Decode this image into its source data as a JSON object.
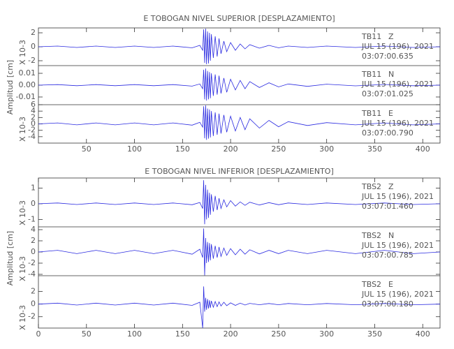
{
  "chart_data": [
    {
      "type": "line",
      "title": "E TOBOGAN NIVEL SUPERIOR [DESPLAZAMIENTO]",
      "y_label": "Amplitud [cm]",
      "xlim": [
        0,
        418
      ],
      "xticks": [
        50,
        100,
        150,
        200,
        250,
        300,
        350,
        400
      ],
      "x": [
        0,
        20,
        40,
        60,
        80,
        100,
        120,
        140,
        160,
        168,
        171,
        172,
        173,
        174,
        175,
        176,
        177,
        178,
        179,
        180,
        182,
        184,
        186,
        188,
        190,
        193,
        196,
        200,
        205,
        210,
        215,
        220,
        230,
        240,
        250,
        260,
        280,
        300,
        330,
        360,
        390,
        418
      ],
      "panels": [
        {
          "station": "TB11",
          "component": "Z",
          "date": "JUL 15 (196), 2021",
          "time": "03:07:00.635",
          "multiplier": "X 10-3",
          "color": "#2a2ae0",
          "ylim": [
            -2.7,
            2.7
          ],
          "yticks": [
            -2,
            0,
            2
          ],
          "values": [
            0,
            0.1,
            -0.1,
            0.1,
            -0.1,
            0.1,
            -0.1,
            0.1,
            -0.15,
            0.2,
            -0.5,
            2.5,
            -2.3,
            2.6,
            -2.5,
            2.2,
            -2.4,
            2,
            -2,
            1.8,
            -1.6,
            1.5,
            -1.4,
            1.2,
            -1,
            0.8,
            -0.7,
            0.6,
            -0.5,
            0.4,
            -0.3,
            0.3,
            -0.2,
            0.2,
            -0.15,
            0.1,
            -0.1,
            0.1,
            -0.1,
            0.1,
            -0.1,
            0
          ]
        },
        {
          "station": "TB11",
          "component": "N",
          "date": "JUL 15 (196), 2021",
          "time": "03:07:01.025",
          "color": "#2a2ae0",
          "ylim": [
            -0.0165,
            0.0165
          ],
          "yticks": [
            -0.01,
            {
              "value": 0,
              "label": "0.00"
            },
            0.01
          ],
          "values": [
            0,
            0.0005,
            -0.0005,
            0.0005,
            -0.0005,
            0.0005,
            -0.0005,
            0.0005,
            -0.0008,
            0.001,
            -0.003,
            0.013,
            -0.012,
            0.014,
            -0.013,
            0.012,
            -0.012,
            0.011,
            -0.011,
            0.01,
            -0.009,
            0.009,
            -0.008,
            0.008,
            -0.007,
            0.006,
            -0.006,
            0.005,
            -0.004,
            0.004,
            -0.003,
            0.003,
            -0.002,
            0.002,
            -0.0015,
            0.001,
            -0.001,
            0.0008,
            -0.0006,
            0.0006,
            -0.0005,
            0
          ]
        },
        {
          "station": "TB11",
          "component": "E",
          "date": "JUL 15 (196), 2021",
          "time": "03:07:00.790",
          "multiplier": "X 10-3",
          "color": "#2a2ae0",
          "ylim": [
            -6,
            6
          ],
          "yticks": [
            -4,
            -2,
            0,
            2,
            4,
            6
          ],
          "values": [
            0,
            0.3,
            -0.3,
            0.3,
            -0.3,
            0.3,
            -0.3,
            0.3,
            -0.4,
            0.5,
            -1,
            5.5,
            -4.5,
            5.8,
            -5,
            4.8,
            -4.6,
            4.5,
            -4.2,
            4,
            -3.8,
            3.6,
            -3.4,
            3.2,
            -3,
            2.8,
            -2.6,
            2.4,
            -2.2,
            2,
            -1.8,
            1.6,
            -1.3,
            1.1,
            -0.9,
            0.7,
            -0.5,
            0.4,
            -0.3,
            0.3,
            -0.3,
            0
          ]
        }
      ]
    },
    {
      "type": "line",
      "title": "E TOBOGAN NIVEL INFERIOR [DESPLAZAMIENTO]",
      "y_label": "Amplitud [cm]",
      "xlim": [
        0,
        418
      ],
      "xticks": [
        0,
        50,
        100,
        150,
        200,
        250,
        300,
        350,
        400
      ],
      "x": [
        0,
        20,
        40,
        60,
        80,
        100,
        120,
        140,
        160,
        168,
        171,
        172,
        173,
        174,
        175,
        176,
        177,
        178,
        179,
        180,
        182,
        184,
        186,
        188,
        190,
        193,
        196,
        200,
        205,
        210,
        215,
        220,
        230,
        240,
        250,
        260,
        280,
        300,
        330,
        360,
        390,
        418
      ],
      "panels": [
        {
          "station": "TBS2",
          "component": "Z",
          "date": "JUL 15 (196), 2021",
          "time": "03:07:01.460",
          "multiplier": "X 10-3",
          "color": "#2a2ae0",
          "ylim": [
            -1.47,
            1.64
          ],
          "yticks": [
            -1,
            0,
            1
          ],
          "values": [
            0,
            0.05,
            -0.05,
            0.05,
            -0.05,
            0.05,
            -0.05,
            0.05,
            -0.06,
            0.08,
            -0.3,
            1.5,
            -1.3,
            1.2,
            -1,
            0.9,
            -0.9,
            0.7,
            -0.7,
            0.6,
            -0.5,
            0.5,
            -0.4,
            0.35,
            -0.3,
            0.25,
            -0.2,
            0.2,
            -0.15,
            0.12,
            -0.1,
            0.1,
            -0.08,
            0.07,
            -0.06,
            0.05,
            -0.05,
            0.05,
            -0.05,
            0.05,
            -0.05,
            0
          ]
        },
        {
          "station": "TBS2",
          "component": "N",
          "date": "JUL 15 (196), 2021",
          "time": "03:07:00.785",
          "multiplier": "X 10-3",
          "color": "#2a2ae0",
          "ylim": [
            -4.25,
            4.5
          ],
          "yticks": [
            -4,
            -2,
            0,
            2,
            4
          ],
          "values": [
            0,
            0.3,
            -0.3,
            0.3,
            -0.3,
            0.3,
            -0.3,
            0.3,
            -0.4,
            0.5,
            -1,
            4.2,
            -4.2,
            2.5,
            -2,
            1.8,
            -1.8,
            1.6,
            -1.5,
            1.4,
            -1.2,
            1.1,
            -1,
            0.9,
            -0.8,
            0.7,
            -0.6,
            0.6,
            -0.5,
            0.5,
            -0.4,
            0.4,
            -0.35,
            0.3,
            -0.3,
            0.3,
            -0.3,
            0.3,
            -0.3,
            0.3,
            -0.3,
            0
          ]
        },
        {
          "station": "TBS2",
          "component": "E",
          "date": "JUL 15 (196), 2021",
          "time": "03:07:00.180",
          "multiplier": "X 10-3",
          "color": "#2a2ae0",
          "ylim": [
            -3.8,
            4.5
          ],
          "yticks": [
            -2,
            0,
            2
          ],
          "values": [
            0,
            0.15,
            -0.15,
            0.15,
            -0.15,
            0.15,
            -0.15,
            0.15,
            -0.2,
            0.3,
            -3.8,
            2.8,
            -1.2,
            1,
            -0.9,
            0.8,
            -0.7,
            0.6,
            -0.6,
            0.5,
            -0.5,
            0.4,
            -0.4,
            0.35,
            -0.3,
            0.3,
            -0.25,
            0.2,
            -0.2,
            0.15,
            -0.15,
            0.12,
            -0.1,
            0.1,
            -0.1,
            0.1,
            -0.1,
            0.1,
            -0.1,
            0.1,
            -0.1,
            0
          ]
        }
      ]
    }
  ]
}
